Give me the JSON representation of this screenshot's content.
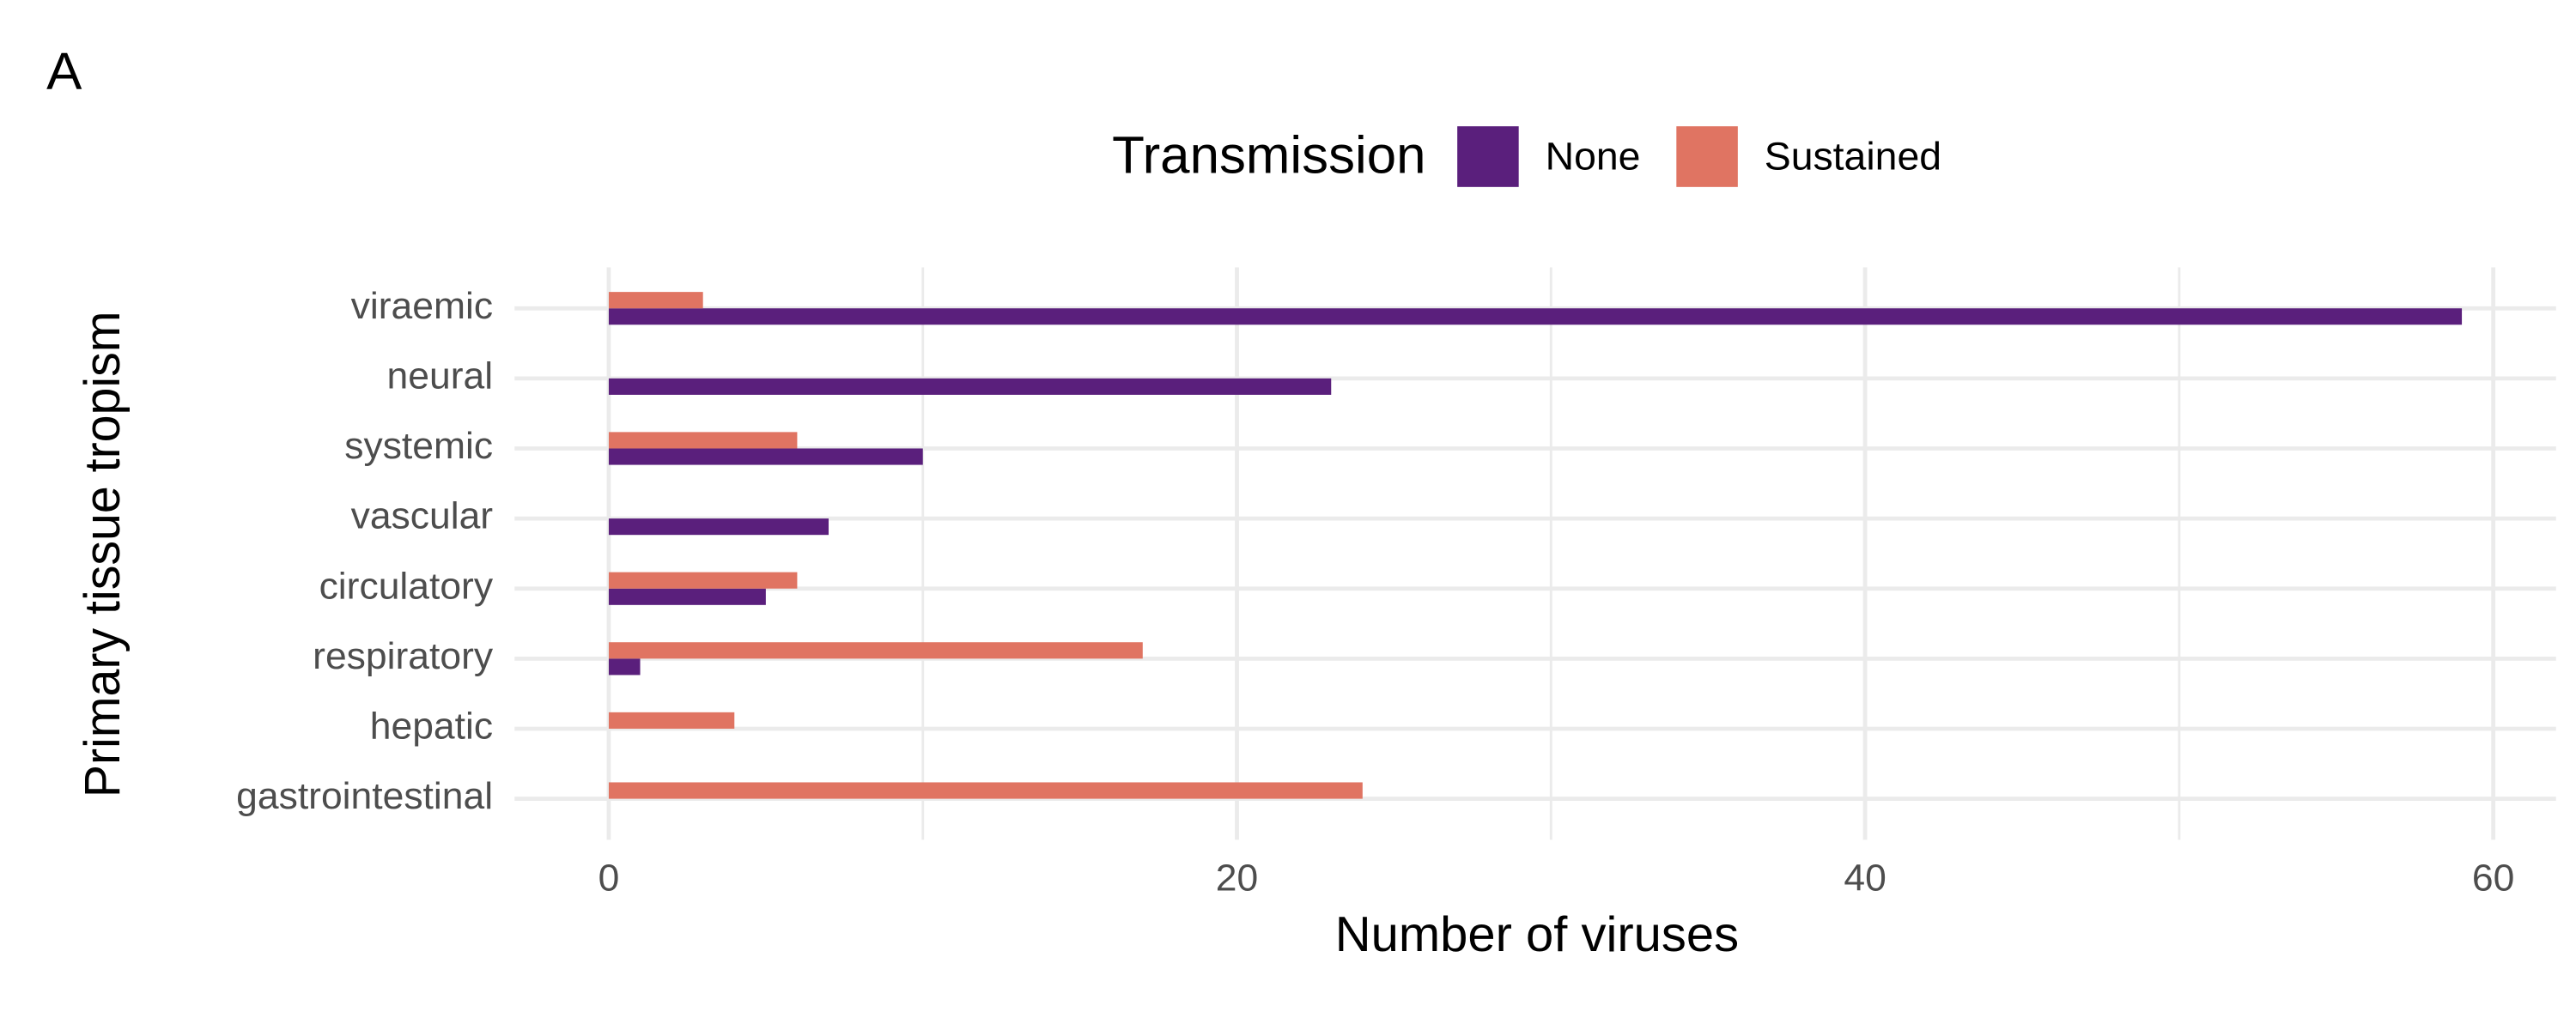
{
  "panel_label": "A",
  "chart_data": {
    "type": "grouped-hbar",
    "x_label": "Number of viruses",
    "y_label": "Primary tissue tropism",
    "legend_title": "Transmission",
    "legend": "top",
    "categories": [
      "viraemic",
      "neural",
      "systemic",
      "vascular",
      "circulatory",
      "respiratory",
      "hepatic",
      "gastrointestinal"
    ],
    "series": [
      {
        "name": "None",
        "color": "#5a1f7c",
        "values": [
          59,
          23,
          10,
          7,
          5,
          1,
          null,
          null
        ]
      },
      {
        "name": "Sustained",
        "color": "#e07462",
        "values": [
          3,
          null,
          6,
          null,
          6,
          17,
          4,
          24
        ]
      }
    ],
    "xlim": [
      -3,
      62
    ],
    "xticks": [
      0,
      20,
      40,
      60
    ],
    "x_minor_grid": [
      10,
      30,
      50
    ],
    "grid": true
  }
}
